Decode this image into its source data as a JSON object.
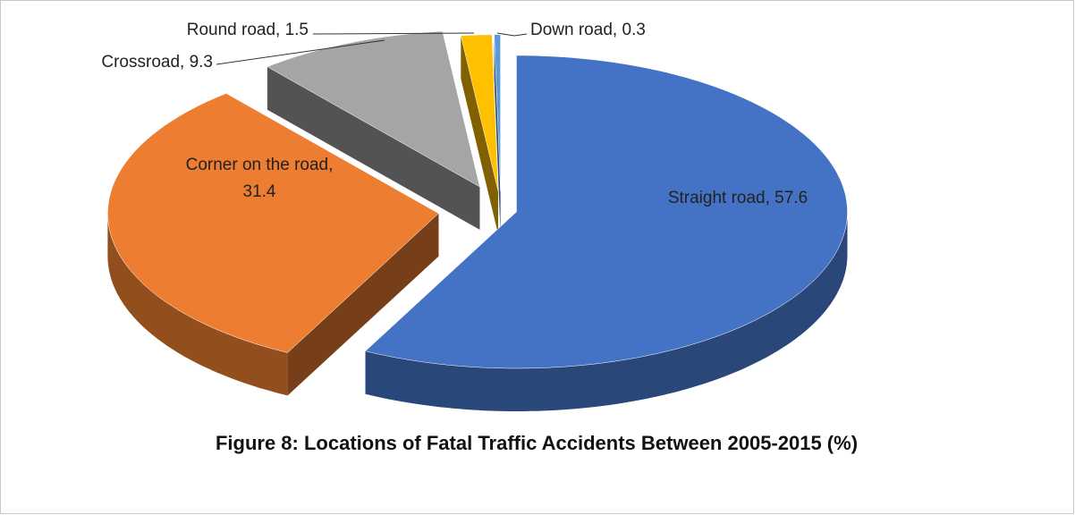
{
  "chart_data": {
    "type": "pie3d",
    "title": "Figure 8: Locations of Fatal Traffic Accidents Between 2005-2015 (%)",
    "values": [
      57.6,
      31.4,
      9.3,
      1.5,
      0.3
    ],
    "value_labels": [
      "Straight road, 57.6",
      "Corner on the road, 31.4",
      "Crossroad, 9.3",
      "Round road, 1.5",
      "Down road, 0.3"
    ],
    "colors": [
      "#4472c4",
      "#ed7d31",
      "#a5a5a5",
      "#ffc000",
      "#5b9bd5"
    ]
  }
}
